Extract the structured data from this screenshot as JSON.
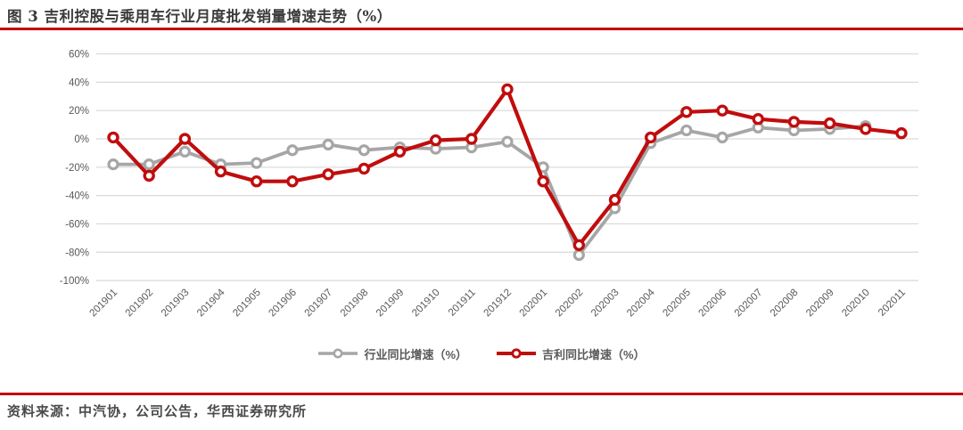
{
  "title": {
    "text": "图 3 吉利控股与乘用车行业月度批发销量增速走势（%）"
  },
  "footer": {
    "source_text": "资料来源：中汽协，公司公告，华西证券研究所"
  },
  "colors": {
    "accent_rule": "#c00000",
    "grid": "#d9d9d9",
    "axis_text": "#595959",
    "industry_series": "#a6a6a6",
    "geely_series": "#c00d0d",
    "marker_fill": "#ffffff"
  },
  "chart_data": {
    "type": "line",
    "title": "吉利控股与乘用车行业月度批发销量增速走势（%）",
    "categories": [
      "201901",
      "201902",
      "201903",
      "201904",
      "201905",
      "201906",
      "201907",
      "201908",
      "201909",
      "201910",
      "201911",
      "201912",
      "202001",
      "202002",
      "202003",
      "202004",
      "202005",
      "202006",
      "202007",
      "202008",
      "202009",
      "202010",
      "202011"
    ],
    "series": [
      {
        "name": "行业同比增速（%）",
        "color": "#a6a6a6",
        "values": [
          -18,
          -18,
          -9,
          -18,
          -17,
          -8,
          -4,
          -8,
          -6,
          -7,
          -6,
          -2,
          -20,
          -82,
          -49,
          -3,
          6,
          1,
          8,
          6,
          7,
          9,
          null
        ]
      },
      {
        "name": "吉利同比增速（%）",
        "color": "#c00d0d",
        "values": [
          1,
          -26,
          0,
          -23,
          -30,
          -30,
          -25,
          -21,
          -9,
          -1,
          0,
          35,
          -30,
          -75,
          -43,
          1,
          19,
          20,
          14,
          12,
          11,
          7,
          4
        ]
      }
    ],
    "xlabel": "",
    "ylabel": "",
    "ylim": [
      -100,
      60
    ],
    "ytick_step": 20,
    "yticks": [
      {
        "value": 60,
        "label": "60%"
      },
      {
        "value": 40,
        "label": "40%"
      },
      {
        "value": 20,
        "label": "20%"
      },
      {
        "value": 0,
        "label": "0%"
      },
      {
        "value": -20,
        "label": "-20%"
      },
      {
        "value": -40,
        "label": "-40%"
      },
      {
        "value": -60,
        "label": "-60%"
      },
      {
        "value": -80,
        "label": "-80%"
      },
      {
        "value": -100,
        "label": "-100%"
      }
    ],
    "grid": true,
    "legend_position": "bottom-center",
    "x_label_rotation": -45
  }
}
